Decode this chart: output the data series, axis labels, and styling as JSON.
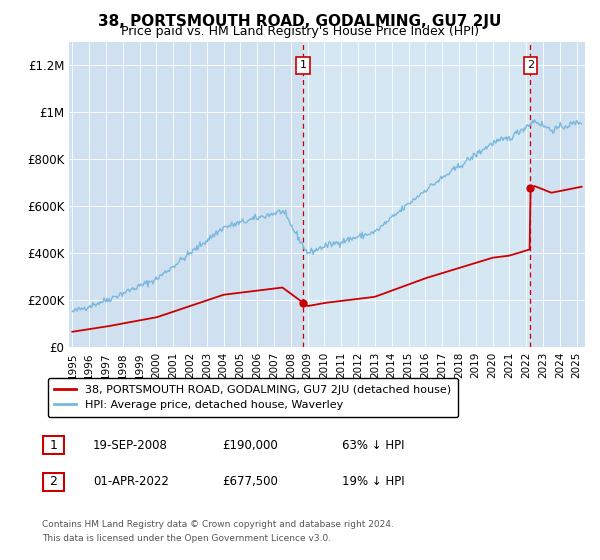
{
  "title": "38, PORTSMOUTH ROAD, GODALMING, GU7 2JU",
  "subtitle": "Price paid vs. HM Land Registry's House Price Index (HPI)",
  "ylabel_ticks": [
    "£0",
    "£200K",
    "£400K",
    "£600K",
    "£800K",
    "£1M",
    "£1.2M"
  ],
  "ytick_values": [
    0,
    200000,
    400000,
    600000,
    800000,
    1000000,
    1200000
  ],
  "ylim": [
    0,
    1300000
  ],
  "xlim_start": 1994.8,
  "xlim_end": 2025.5,
  "background_color": "#dce9f5",
  "plot_bg_color": "#cfe0f0",
  "hpi_line_color": "#7ab8dd",
  "price_line_color": "#cc0000",
  "dashed_line_color": "#cc0000",
  "legend_label_1": "38, PORTSMOUTH ROAD, GODALMING, GU7 2JU (detached house)",
  "legend_label_2": "HPI: Average price, detached house, Waverley",
  "annotation_1_date": 2008.72,
  "annotation_1_price": 190000,
  "annotation_2_date": 2022.25,
  "annotation_2_price": 677500,
  "footer_line1": "Contains HM Land Registry data © Crown copyright and database right 2024.",
  "footer_line2": "This data is licensed under the Open Government Licence v3.0.",
  "xtick_years": [
    1995,
    1996,
    1997,
    1998,
    1999,
    2000,
    2001,
    2002,
    2003,
    2004,
    2005,
    2006,
    2007,
    2008,
    2009,
    2010,
    2011,
    2012,
    2013,
    2014,
    2015,
    2016,
    2017,
    2018,
    2019,
    2020,
    2021,
    2022,
    2023,
    2024,
    2025
  ]
}
